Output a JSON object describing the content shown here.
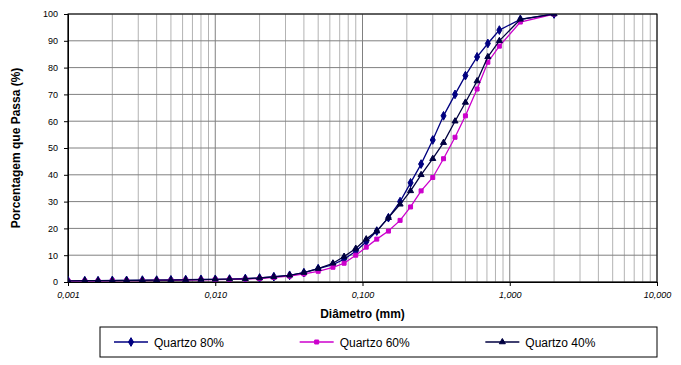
{
  "chart_data": {
    "type": "line",
    "x_label": "Diâmetro (mm)",
    "y_label": "Porcentagem que Passa (%)",
    "log": "x",
    "grid": true,
    "legend": "bottom",
    "xlim": [
      0.001,
      10
    ],
    "ylim": [
      0,
      100
    ],
    "xticks": [
      {
        "value": 0.001,
        "label": "0,001"
      },
      {
        "value": 0.01,
        "label": "0,010"
      },
      {
        "value": 0.1,
        "label": "0,100"
      },
      {
        "value": 1,
        "label": "1,000"
      },
      {
        "value": 10,
        "label": "10,000"
      }
    ],
    "yticks": [
      0,
      10,
      20,
      30,
      40,
      50,
      60,
      70,
      80,
      90,
      100
    ],
    "x": [
      0.001,
      0.0013,
      0.0016,
      0.002,
      0.0025,
      0.0032,
      0.004,
      0.005,
      0.0063,
      0.008,
      0.01,
      0.0125,
      0.016,
      0.02,
      0.025,
      0.032,
      0.04,
      0.05,
      0.063,
      0.075,
      0.09,
      0.106,
      0.125,
      0.15,
      0.18,
      0.212,
      0.25,
      0.3,
      0.355,
      0.425,
      0.5,
      0.6,
      0.71,
      0.85,
      1.18,
      2.0
    ],
    "series": [
      {
        "name": "Quartzo 80%",
        "color": "#000080",
        "marker": "diamond",
        "line_style": "solid",
        "values": [
          0.5,
          0.5,
          0.5,
          0.6,
          0.6,
          0.7,
          0.7,
          0.8,
          0.9,
          1.0,
          1.0,
          1.1,
          1.3,
          1.5,
          2.0,
          2.5,
          3.5,
          5.0,
          6.5,
          8.5,
          11.5,
          15,
          19,
          24,
          30,
          37,
          44,
          53,
          62,
          70,
          77,
          84,
          89,
          94,
          98,
          100
        ]
      },
      {
        "name": "Quartzo 60%",
        "color": "#cc00cc",
        "marker": "square",
        "line_style": "solid",
        "values": [
          0.4,
          0.4,
          0.4,
          0.5,
          0.5,
          0.5,
          0.6,
          0.6,
          0.7,
          0.8,
          0.9,
          1.0,
          1.1,
          1.3,
          1.7,
          2.2,
          3.0,
          4.0,
          5.5,
          7,
          10,
          13,
          16,
          19,
          23,
          28,
          34,
          39,
          46,
          54,
          62,
          72,
          82,
          88,
          97,
          100
        ]
      },
      {
        "name": "Quartzo 40%",
        "color": "#000040",
        "marker": "triangle",
        "line_style": "solid",
        "values": [
          0.4,
          0.5,
          0.5,
          0.5,
          0.6,
          0.6,
          0.7,
          0.7,
          0.8,
          0.9,
          1.0,
          1.1,
          1.2,
          1.5,
          1.9,
          2.5,
          3.5,
          5.0,
          7.0,
          9.5,
          12.5,
          16,
          19,
          24,
          29,
          34,
          40,
          46,
          52,
          60,
          67,
          75,
          84,
          90,
          98,
          100
        ]
      }
    ]
  }
}
